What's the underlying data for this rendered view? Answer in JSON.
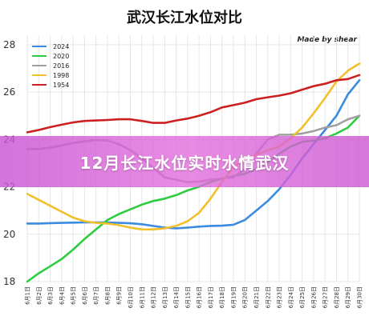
{
  "banner": {
    "text": "12月长江水位实时水情武汉"
  },
  "chart_data": {
    "type": "line",
    "title": "武汉长江水位对比",
    "credit": "Made by shear",
    "xlabel": "",
    "ylabel": "",
    "ylim": [
      18,
      28.4
    ],
    "yticks": [
      18,
      20,
      22,
      24,
      26,
      28
    ],
    "categories": [
      "6月1日",
      "6月2日",
      "6月3日",
      "6月4日",
      "6月5日",
      "6月6日",
      "6月7日",
      "6月8日",
      "6月9日",
      "6月10日",
      "6月11日",
      "6月12日",
      "6月13日",
      "6月14日",
      "6月15日",
      "6月16日",
      "6月17日",
      "6月18日",
      "6月19日",
      "6月20日",
      "6月21日",
      "6月22日",
      "6月23日",
      "6月24日",
      "6月25日",
      "6月26日",
      "6月27日",
      "6月28日",
      "6月29日",
      "6月30日"
    ],
    "legend_position": "top-left",
    "grid": true,
    "series": [
      {
        "name": "2024",
        "color": "#3b8be0",
        "values": [
          20.45,
          20.45,
          20.47,
          20.48,
          20.49,
          20.5,
          20.5,
          20.5,
          20.48,
          20.46,
          20.42,
          20.35,
          20.28,
          20.25,
          20.28,
          20.32,
          20.35,
          20.36,
          20.4,
          20.6,
          21.0,
          21.4,
          21.9,
          22.5,
          23.2,
          23.8,
          24.4,
          25.0,
          25.9,
          26.5
        ]
      },
      {
        "name": "2020",
        "color": "#2ecc40",
        "values": [
          18.0,
          18.35,
          18.65,
          18.95,
          19.35,
          19.8,
          20.2,
          20.6,
          20.85,
          21.05,
          21.25,
          21.4,
          21.5,
          21.65,
          21.85,
          22.0,
          22.2,
          22.35,
          22.45,
          22.55,
          22.75,
          23.05,
          23.4,
          23.7,
          23.9,
          23.95,
          24.05,
          24.25,
          24.5,
          25.0
        ]
      },
      {
        "name": "2016",
        "color": "#a0a0a0",
        "values": [
          23.6,
          23.6,
          23.65,
          23.75,
          23.85,
          23.92,
          23.98,
          23.95,
          23.8,
          23.55,
          23.2,
          22.8,
          22.4,
          22.3,
          22.2,
          22.22,
          22.3,
          22.35,
          22.4,
          22.75,
          23.4,
          24.0,
          24.2,
          24.2,
          24.25,
          24.35,
          24.5,
          24.6,
          24.85,
          25.0
        ]
      },
      {
        "name": "1998",
        "color": "#f2c02a",
        "values": [
          21.7,
          21.45,
          21.2,
          20.95,
          20.7,
          20.55,
          20.48,
          20.45,
          20.38,
          20.28,
          20.2,
          20.2,
          20.25,
          20.35,
          20.55,
          20.9,
          21.5,
          22.2,
          22.85,
          23.15,
          23.35,
          23.55,
          23.7,
          24.05,
          24.5,
          25.1,
          25.75,
          26.45,
          26.9,
          27.2
        ]
      },
      {
        "name": "1954",
        "color": "#cc2020",
        "values": [
          24.3,
          24.4,
          24.52,
          24.62,
          24.72,
          24.78,
          24.8,
          24.82,
          24.85,
          24.85,
          24.78,
          24.7,
          24.7,
          24.8,
          24.88,
          25.0,
          25.15,
          25.35,
          25.45,
          25.55,
          25.7,
          25.78,
          25.85,
          25.95,
          26.1,
          26.25,
          26.35,
          26.5,
          26.55,
          26.72
        ]
      }
    ]
  }
}
